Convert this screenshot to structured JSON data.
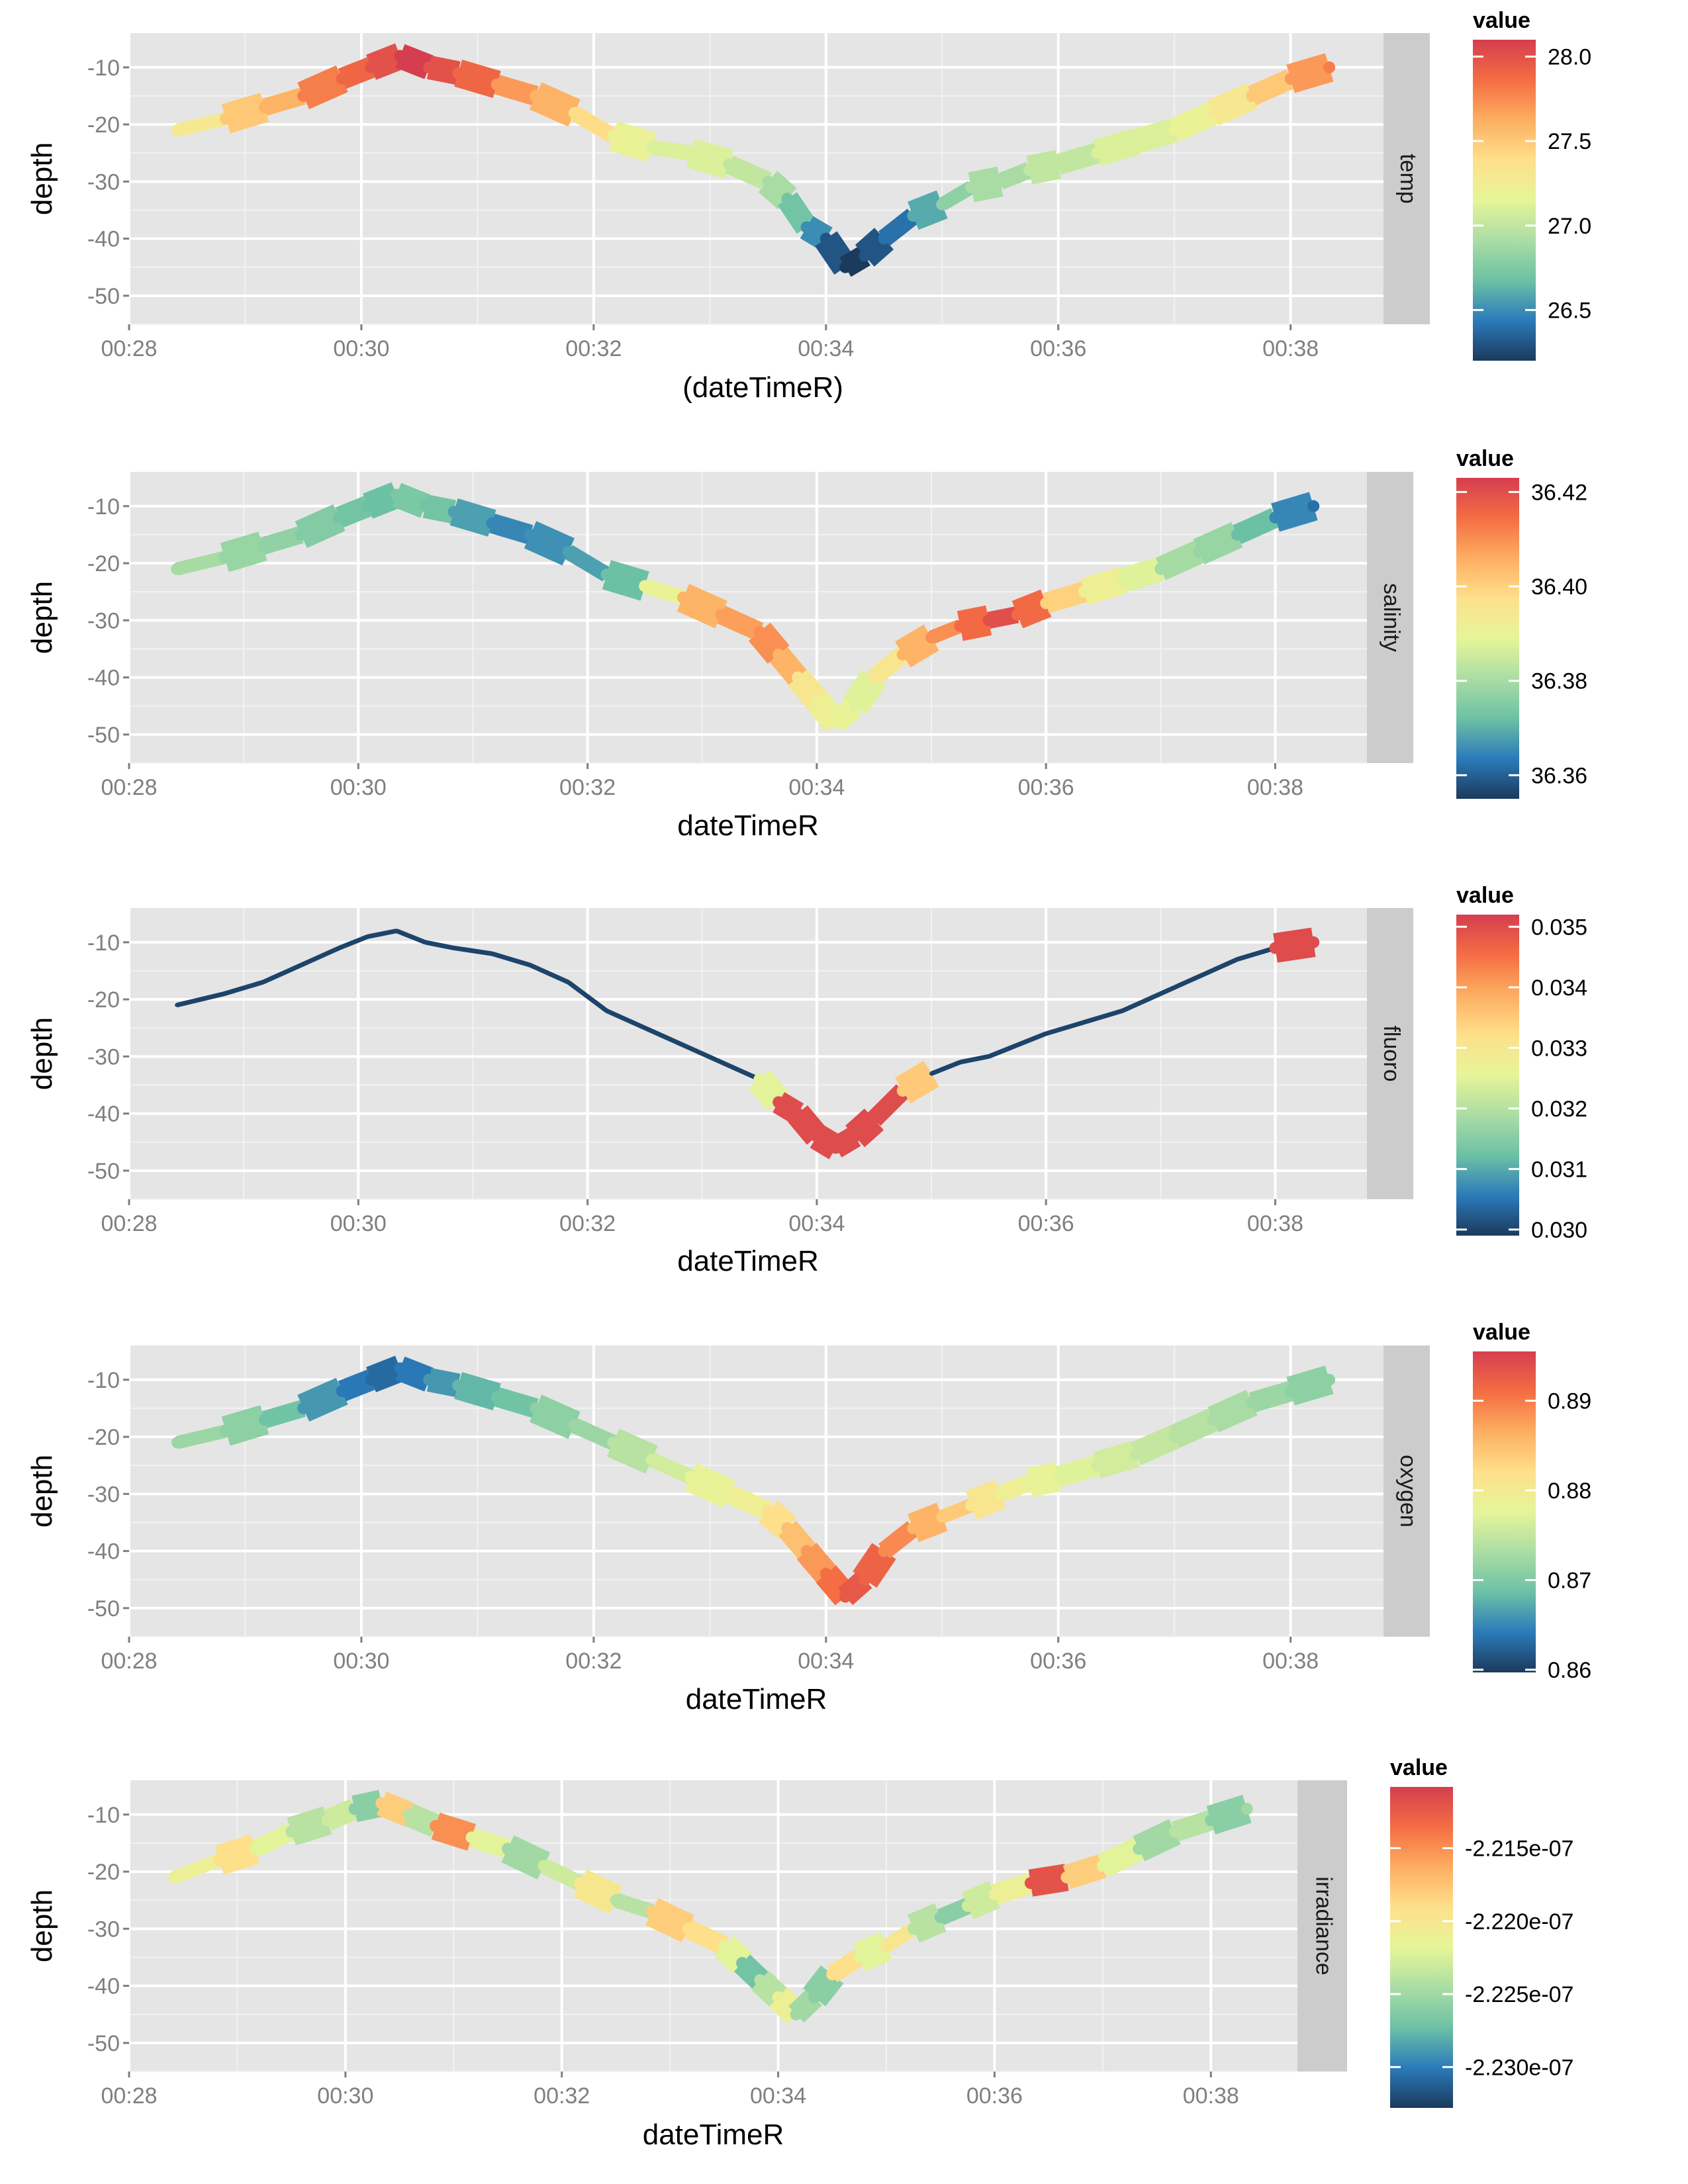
{
  "chart_data": [
    {
      "type": "line",
      "facet": "temp",
      "xlabel": "(dateTimeR)",
      "ylabel": "depth",
      "x_ticks": [
        "00:28",
        "00:30",
        "00:32",
        "00:34",
        "00:36",
        "00:38"
      ],
      "y_ticks": [
        -10,
        -20,
        -30,
        -40,
        -50
      ],
      "xlim": [
        "00:28",
        "00:38.8"
      ],
      "ylim": [
        -55,
        -4
      ],
      "legend": {
        "title": "value",
        "ticks": [
          "28.0",
          "27.5",
          "27.0",
          "26.5"
        ],
        "range": [
          26.2,
          28.1
        ]
      },
      "series": [
        {
          "x": [
            "00:28:25",
            "00:28:50",
            "00:29:10",
            "00:29:30",
            "00:29:50",
            "00:30:05",
            "00:30:20",
            "00:30:35",
            "00:30:50",
            "00:31:10",
            "00:31:30",
            "00:31:50",
            "00:32:10",
            "00:32:30",
            "00:32:50",
            "00:33:10",
            "00:33:30",
            "00:33:40",
            "00:33:50",
            "00:34:00",
            "00:34:10",
            "00:34:20",
            "00:34:30",
            "00:34:45",
            "00:35:00",
            "00:35:15",
            "00:35:30",
            "00:35:45",
            "00:36:00",
            "00:36:20",
            "00:36:40",
            "00:37:00",
            "00:37:20",
            "00:37:40",
            "00:38:00",
            "00:38:20"
          ],
          "depth": [
            -21,
            -19,
            -17,
            -15,
            -12,
            -10,
            -8,
            -10,
            -11,
            -13,
            -15,
            -18,
            -22,
            -24,
            -25,
            -27,
            -30,
            -33,
            -38,
            -40,
            -45,
            -43,
            -40,
            -36,
            -34,
            -31,
            -30,
            -28,
            -27,
            -25,
            -23,
            -21,
            -18,
            -15,
            -12,
            -10
          ],
          "value": [
            27.3,
            27.5,
            27.6,
            27.8,
            27.9,
            28.0,
            28.1,
            28.0,
            27.9,
            27.7,
            27.6,
            27.4,
            27.2,
            27.1,
            27.1,
            27.0,
            26.9,
            26.7,
            26.5,
            26.3,
            26.2,
            26.3,
            26.4,
            26.6,
            26.8,
            26.9,
            26.9,
            27.0,
            27.0,
            27.1,
            27.1,
            27.2,
            27.3,
            27.5,
            27.7,
            27.8
          ]
        }
      ]
    },
    {
      "type": "line",
      "facet": "salinity",
      "xlabel": "dateTimeR",
      "ylabel": "depth",
      "x_ticks": [
        "00:28",
        "00:30",
        "00:32",
        "00:34",
        "00:36",
        "00:38"
      ],
      "y_ticks": [
        -10,
        -20,
        -30,
        -40,
        -50
      ],
      "xlim": [
        "00:28",
        "00:38.8"
      ],
      "ylim": [
        -55,
        -4
      ],
      "legend": {
        "title": "value",
        "ticks": [
          "36.42",
          "36.40",
          "36.38",
          "36.36"
        ],
        "range": [
          36.355,
          36.423
        ]
      },
      "series": [
        {
          "x": [
            "00:28:25",
            "00:28:50",
            "00:29:10",
            "00:29:30",
            "00:29:50",
            "00:30:05",
            "00:30:20",
            "00:30:35",
            "00:30:50",
            "00:31:10",
            "00:31:30",
            "00:31:50",
            "00:32:10",
            "00:32:30",
            "00:32:50",
            "00:33:10",
            "00:33:30",
            "00:33:40",
            "00:33:50",
            "00:34:00",
            "00:34:10",
            "00:34:20",
            "00:34:30",
            "00:34:45",
            "00:35:00",
            "00:35:15",
            "00:35:30",
            "00:35:45",
            "00:36:00",
            "00:36:20",
            "00:36:40",
            "00:37:00",
            "00:37:20",
            "00:37:40",
            "00:38:00",
            "00:38:20"
          ],
          "depth": [
            -21,
            -19,
            -17,
            -15,
            -12,
            -10,
            -8,
            -10,
            -11,
            -13,
            -15,
            -18,
            -22,
            -24,
            -26,
            -29,
            -32,
            -36,
            -40,
            -44,
            -48,
            -45,
            -40,
            -36,
            -33,
            -31,
            -30,
            -29,
            -27,
            -25,
            -23,
            -21,
            -18,
            -15,
            -12,
            -10
          ],
          "value": [
            36.38,
            36.378,
            36.377,
            36.375,
            36.373,
            36.372,
            36.374,
            36.373,
            36.368,
            36.365,
            36.366,
            36.368,
            36.372,
            36.39,
            36.405,
            36.408,
            36.41,
            36.405,
            36.395,
            36.392,
            36.39,
            36.388,
            36.395,
            36.405,
            36.41,
            36.415,
            36.42,
            36.415,
            36.4,
            36.392,
            36.388,
            36.38,
            36.378,
            36.372,
            36.365,
            36.362
          ]
        }
      ]
    },
    {
      "type": "line",
      "facet": "fluoro",
      "xlabel": "dateTimeR",
      "ylabel": "depth",
      "x_ticks": [
        "00:28",
        "00:30",
        "00:32",
        "00:34",
        "00:36",
        "00:38"
      ],
      "y_ticks": [
        -10,
        -20,
        -30,
        -40,
        -50
      ],
      "xlim": [
        "00:28",
        "00:38.8"
      ],
      "ylim": [
        -55,
        -4
      ],
      "legend": {
        "title": "value",
        "ticks": [
          "0.035",
          "0.034",
          "0.033",
          "0.032",
          "0.031",
          "0.030"
        ],
        "range": [
          0.0299,
          0.0352
        ]
      },
      "series": [
        {
          "x": [
            "00:28:25",
            "00:28:50",
            "00:29:10",
            "00:29:30",
            "00:29:50",
            "00:30:05",
            "00:30:20",
            "00:30:35",
            "00:30:50",
            "00:31:10",
            "00:31:30",
            "00:31:50",
            "00:32:10",
            "00:32:30",
            "00:32:50",
            "00:33:10",
            "00:33:30",
            "00:33:40",
            "00:33:50",
            "00:34:00",
            "00:34:10",
            "00:34:20",
            "00:34:30",
            "00:34:45",
            "00:35:00",
            "00:35:15",
            "00:35:30",
            "00:35:45",
            "00:36:00",
            "00:36:20",
            "00:36:40",
            "00:37:00",
            "00:37:20",
            "00:37:40",
            "00:38:00",
            "00:38:20"
          ],
          "depth": [
            -21,
            -19,
            -17,
            -14,
            -11,
            -9,
            -8,
            -10,
            -11,
            -12,
            -14,
            -17,
            -22,
            -25,
            -28,
            -31,
            -34,
            -38,
            -40,
            -44,
            -46,
            -44,
            -41,
            -36,
            -33,
            -31,
            -30,
            -28,
            -26,
            -24,
            -22,
            -19,
            -16,
            -13,
            -11,
            -10
          ],
          "value": [
            0.03,
            0.03,
            0.03,
            0.03,
            0.03,
            0.03,
            0.03,
            0.03,
            0.03,
            0.03,
            0.03,
            0.03,
            0.03,
            0.03,
            0.03,
            0.03,
            0.0325,
            0.035,
            0.035,
            0.035,
            0.035,
            0.035,
            0.035,
            0.0335,
            0.03,
            0.03,
            0.03,
            0.03,
            0.03,
            0.03,
            0.03,
            0.03,
            0.03,
            0.03,
            0.035,
            0.035
          ]
        }
      ]
    },
    {
      "type": "line",
      "facet": "oxygen",
      "xlabel": "dateTimeR",
      "ylabel": "depth",
      "x_ticks": [
        "00:28",
        "00:30",
        "00:32",
        "00:34",
        "00:36",
        "00:38"
      ],
      "y_ticks": [
        -10,
        -20,
        -30,
        -40,
        -50
      ],
      "xlim": [
        "00:28",
        "00:38.8"
      ],
      "ylim": [
        -55,
        -4
      ],
      "legend": {
        "title": "value",
        "ticks": [
          "0.89",
          "0.88",
          "0.87",
          "0.86"
        ],
        "range": [
          0.8597,
          0.8955
        ]
      },
      "series": [
        {
          "x": [
            "00:28:25",
            "00:28:50",
            "00:29:10",
            "00:29:30",
            "00:29:50",
            "00:30:05",
            "00:30:20",
            "00:30:35",
            "00:30:50",
            "00:31:10",
            "00:31:30",
            "00:31:50",
            "00:32:10",
            "00:32:30",
            "00:32:50",
            "00:33:10",
            "00:33:30",
            "00:33:40",
            "00:33:50",
            "00:34:00",
            "00:34:10",
            "00:34:20",
            "00:34:30",
            "00:34:45",
            "00:35:00",
            "00:35:15",
            "00:35:30",
            "00:35:45",
            "00:36:00",
            "00:36:20",
            "00:36:40",
            "00:37:00",
            "00:37:20",
            "00:37:40",
            "00:38:00",
            "00:38:20"
          ],
          "depth": [
            -21,
            -19,
            -17,
            -15,
            -12,
            -10,
            -8,
            -10,
            -11,
            -13,
            -15,
            -18,
            -21,
            -24,
            -27,
            -30,
            -33,
            -36,
            -40,
            -44,
            -48,
            -45,
            -40,
            -36,
            -34,
            -32,
            -30,
            -28,
            -27,
            -25,
            -23,
            -20,
            -17,
            -14,
            -12,
            -10
          ],
          "value": [
            0.872,
            0.871,
            0.869,
            0.866,
            0.864,
            0.863,
            0.864,
            0.866,
            0.868,
            0.869,
            0.871,
            0.872,
            0.874,
            0.876,
            0.878,
            0.879,
            0.882,
            0.885,
            0.888,
            0.891,
            0.893,
            0.892,
            0.889,
            0.886,
            0.884,
            0.881,
            0.879,
            0.878,
            0.877,
            0.876,
            0.875,
            0.874,
            0.873,
            0.872,
            0.871,
            0.871
          ]
        }
      ]
    },
    {
      "type": "line",
      "facet": "irradiance",
      "xlabel": "dateTimeR",
      "ylabel": "depth",
      "x_ticks": [
        "00:28",
        "00:30",
        "00:32",
        "00:34",
        "00:36",
        "00:38"
      ],
      "y_ticks": [
        -10,
        -20,
        -30,
        -40,
        -50
      ],
      "xlim": [
        "00:28",
        "00:38.8"
      ],
      "ylim": [
        -55,
        -4
      ],
      "legend": {
        "title": "value",
        "ticks": [
          "-2.215e-07",
          "-2.220e-07",
          "-2.225e-07",
          "-2.230e-07"
        ],
        "range": [
          -2.2328e-07,
          -2.2108e-07
        ]
      },
      "series": [
        {
          "x": [
            "00:28:25",
            "00:28:50",
            "00:29:10",
            "00:29:30",
            "00:29:50",
            "00:30:05",
            "00:30:20",
            "00:30:35",
            "00:30:50",
            "00:31:10",
            "00:31:30",
            "00:31:50",
            "00:32:10",
            "00:32:30",
            "00:32:50",
            "00:33:10",
            "00:33:30",
            "00:33:40",
            "00:33:50",
            "00:34:00",
            "00:34:10",
            "00:34:20",
            "00:34:30",
            "00:34:45",
            "00:35:00",
            "00:35:15",
            "00:35:30",
            "00:35:45",
            "00:36:00",
            "00:36:20",
            "00:36:40",
            "00:37:00",
            "00:37:20",
            "00:37:40",
            "00:38:00",
            "00:38:20"
          ],
          "depth": [
            -21,
            -18,
            -16,
            -13,
            -11,
            -9,
            -8,
            -10,
            -12,
            -14,
            -16,
            -19,
            -22,
            -25,
            -27,
            -30,
            -33,
            -36,
            -39,
            -42,
            -45,
            -42,
            -38,
            -35,
            -33,
            -30,
            -28,
            -26,
            -24,
            -22,
            -21,
            -19,
            -16,
            -13,
            -11,
            -9
          ],
          "value": [
            -2.221e-07,
            -2.219e-07,
            -2.222e-07,
            -2.224e-07,
            -2.223e-07,
            -2.226e-07,
            -2.218e-07,
            -2.224e-07,
            -2.215e-07,
            -2.222e-07,
            -2.225e-07,
            -2.223e-07,
            -2.22e-07,
            -2.224e-07,
            -2.218e-07,
            -2.219e-07,
            -2.222e-07,
            -2.227e-07,
            -2.224e-07,
            -2.221e-07,
            -2.225e-07,
            -2.226e-07,
            -2.219e-07,
            -2.222e-07,
            -2.22e-07,
            -2.224e-07,
            -2.226e-07,
            -2.223e-07,
            -2.221e-07,
            -2.212e-07,
            -2.218e-07,
            -2.222e-07,
            -2.225e-07,
            -2.224e-07,
            -2.226e-07,
            -2.225e-07
          ]
        }
      ]
    }
  ],
  "colors": {
    "panel_background": "#e5e5e5",
    "grid_major": "#ffffff",
    "grid_minor": "#f2f2f2",
    "strip_background": "#cccccc",
    "tick_label": "#7f7f7f",
    "palette_spectral": [
      "#1b3a5c",
      "#2b7bba",
      "#6cc1a5",
      "#abdda4",
      "#e6f598",
      "#fee08b",
      "#fdae61",
      "#f46d43",
      "#d53e4f"
    ]
  }
}
